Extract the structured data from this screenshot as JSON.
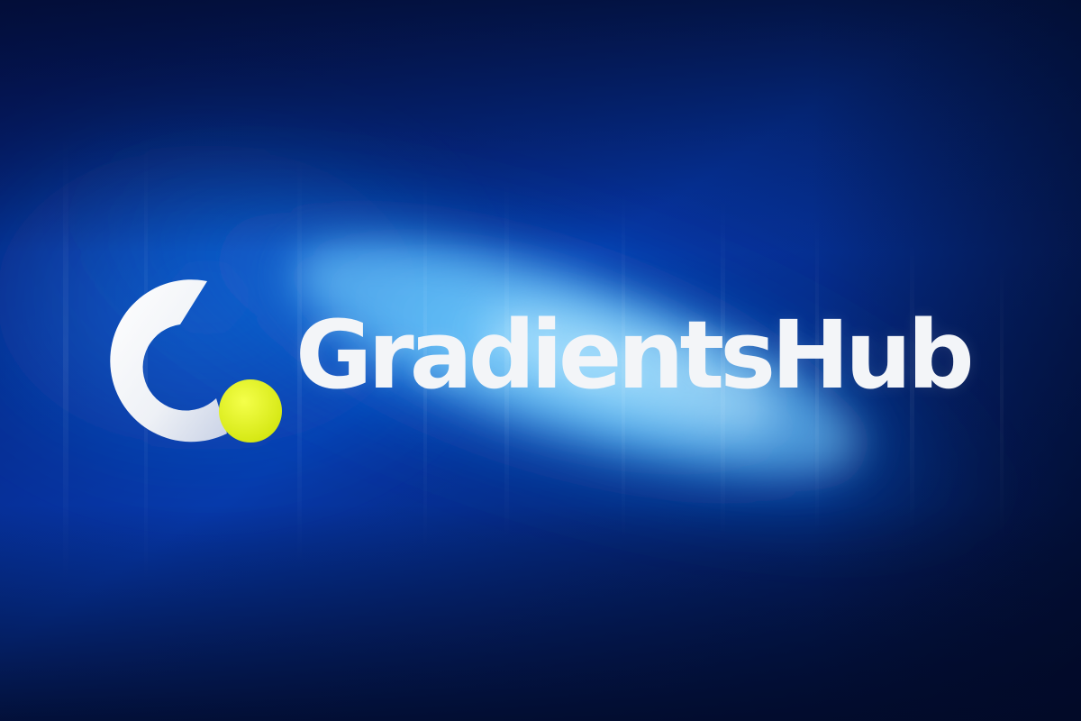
{
  "brand": {
    "name": "GradientsHub"
  },
  "colors": {
    "background_dark": "#031038",
    "background_mid": "#0a45b5",
    "glow": "#3fb7ff",
    "logo_white": "#f4f5f8",
    "logo_accent": "#e6f516",
    "text": "#f3f5f8"
  },
  "icons": {
    "logo": "c-letter-with-dot-logo-icon"
  }
}
